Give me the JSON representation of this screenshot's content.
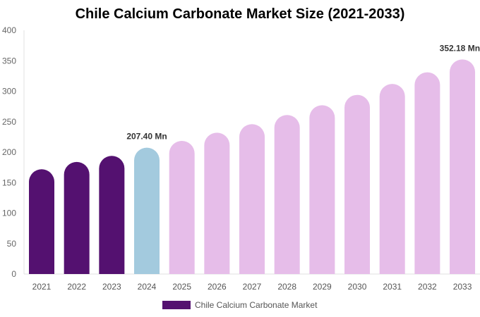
{
  "chart_data": {
    "type": "bar",
    "title": "Chile Calcium Carbonate Market Size (2021-2033)",
    "categories": [
      "2021",
      "2022",
      "2023",
      "2024",
      "2025",
      "2026",
      "2027",
      "2028",
      "2029",
      "2030",
      "2031",
      "2032",
      "2033"
    ],
    "series": [
      {
        "name": "Chile Calcium Carbonate Market",
        "values": [
          172,
          184,
          194,
          207.4,
          218.5,
          232,
          246,
          261,
          277,
          294,
          312,
          331,
          352.18
        ]
      }
    ],
    "data_labels": [
      {
        "category": "2024",
        "text": "207.40 Mn"
      },
      {
        "category": "2033",
        "text": "352.18 Mn"
      }
    ],
    "ylim": [
      0,
      400
    ],
    "yticks": [
      0,
      50,
      100,
      150,
      200,
      250,
      300,
      350,
      400
    ],
    "xlabel": "",
    "ylabel": "",
    "grid": false,
    "legend_position": "bottom",
    "colors": {
      "historical": "#541170",
      "current": "#a3cade",
      "forecast": "#e6bde9"
    }
  }
}
